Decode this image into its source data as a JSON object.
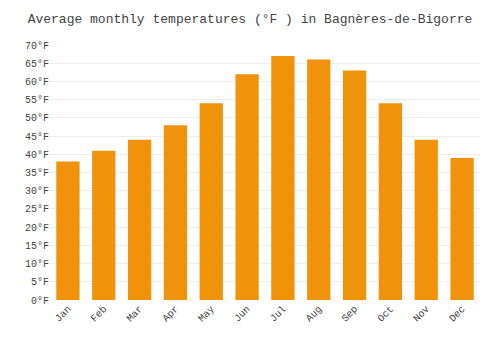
{
  "chart_data": {
    "type": "bar",
    "title": "Average monthly temperatures (°F ) in Bagnères-de-Bigorre",
    "categories": [
      "Jan",
      "Feb",
      "Mar",
      "Apr",
      "May",
      "Jun",
      "Jul",
      "Aug",
      "Sep",
      "Oct",
      "Nov",
      "Dec"
    ],
    "values": [
      38,
      41,
      44,
      48,
      54,
      62,
      67,
      66,
      63,
      54,
      44,
      39
    ],
    "color": "#F0920A",
    "ylim": [
      0,
      70
    ],
    "yticks": [
      {
        "value": 0,
        "label": "0°F"
      },
      {
        "value": 5,
        "label": "5°F"
      },
      {
        "value": 10,
        "label": "10°F"
      },
      {
        "value": 15,
        "label": "15°F"
      },
      {
        "value": 20,
        "label": "20°F"
      },
      {
        "value": 25,
        "label": "25°F"
      },
      {
        "value": 30,
        "label": "30°F"
      },
      {
        "value": 35,
        "label": "35°F"
      },
      {
        "value": 40,
        "label": "40°F"
      },
      {
        "value": 45,
        "label": "45°F"
      },
      {
        "value": 50,
        "label": "50°F"
      },
      {
        "value": 55,
        "label": "55°F"
      },
      {
        "value": 60,
        "label": "60°F"
      },
      {
        "value": 65,
        "label": "65°F"
      },
      {
        "value": 70,
        "label": "70°F"
      }
    ],
    "grid": true
  }
}
